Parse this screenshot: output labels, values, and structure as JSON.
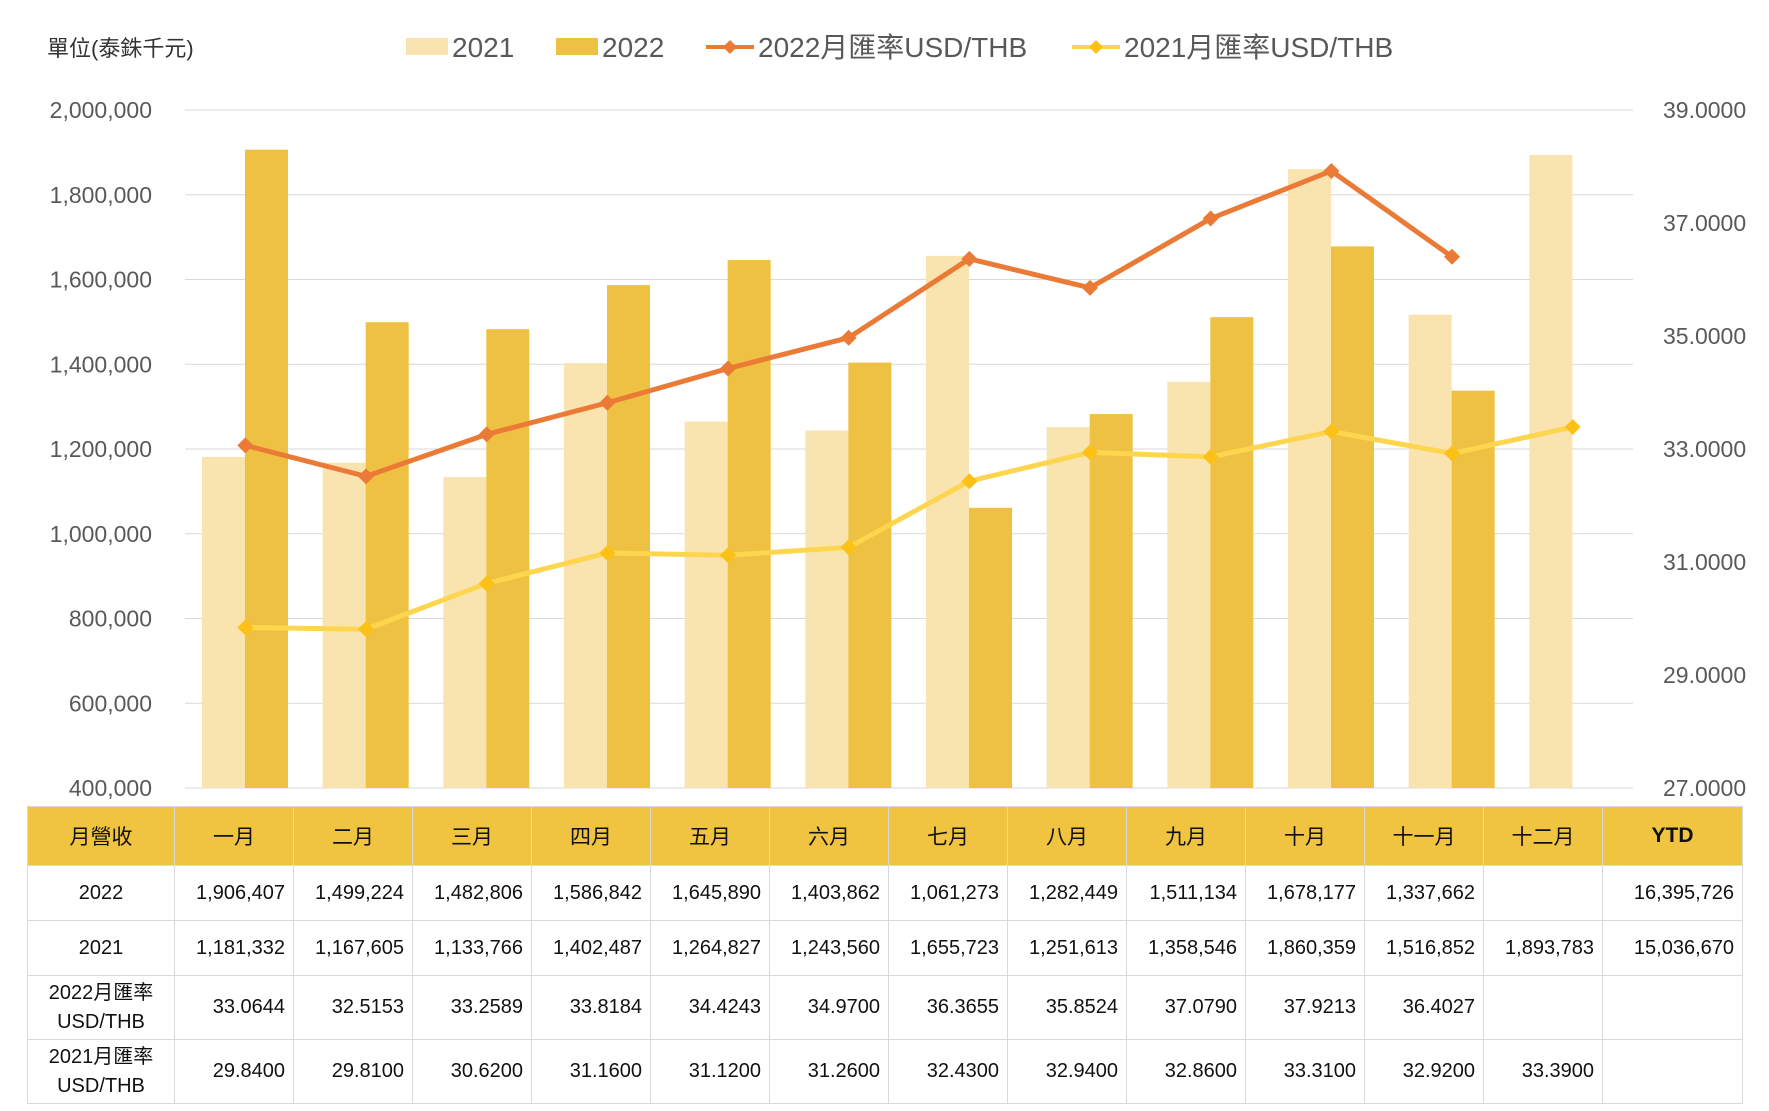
{
  "chart_data": {
    "type": "bar",
    "unit_label": "單位(泰銖千元)",
    "categories": [
      "一月",
      "二月",
      "三月",
      "四月",
      "五月",
      "六月",
      "七月",
      "八月",
      "九月",
      "十月",
      "十一月",
      "十二月"
    ],
    "y_left": {
      "ticks": [
        "2,000,000",
        "1,800,000",
        "1,600,000",
        "1,400,000",
        "1,200,000",
        "1,000,000",
        "800,000",
        "600,000",
        "400,000"
      ],
      "range": [
        400000,
        2000000
      ]
    },
    "y_right": {
      "ticks": [
        "39.0000",
        "37.0000",
        "35.0000",
        "33.0000",
        "31.0000",
        "29.0000",
        "27.0000"
      ],
      "range": [
        27,
        39
      ]
    },
    "grid": true,
    "legend_position": "top",
    "series": [
      {
        "name": "2021",
        "kind": "bar",
        "axis": "left",
        "color": "#f9e4b0",
        "values": [
          1181332,
          1167605,
          1133766,
          1402487,
          1264827,
          1243560,
          1655723,
          1251613,
          1358546,
          1860359,
          1516852,
          1893783
        ]
      },
      {
        "name": "2022",
        "kind": "bar",
        "axis": "left",
        "color": "#efc142",
        "values": [
          1906407,
          1499224,
          1482806,
          1586842,
          1645890,
          1403862,
          1061273,
          1282449,
          1511134,
          1678177,
          1337662,
          null
        ]
      },
      {
        "name": "2022月匯率USD/THB",
        "kind": "line",
        "axis": "right",
        "color": "#ea7a35",
        "values": [
          33.0644,
          32.5153,
          33.2589,
          33.8184,
          34.4243,
          34.97,
          36.3655,
          35.8524,
          37.079,
          37.9213,
          36.4027,
          null
        ]
      },
      {
        "name": "2021月匯率USD/THB",
        "kind": "line",
        "axis": "right",
        "color": "#fed54f",
        "marker_color": "#fdc015",
        "values": [
          29.84,
          29.81,
          30.62,
          31.16,
          31.12,
          31.26,
          32.43,
          32.94,
          32.86,
          33.31,
          32.92,
          33.39
        ]
      }
    ]
  },
  "table": {
    "corner": "月營收",
    "months": [
      "一月",
      "二月",
      "三月",
      "四月",
      "五月",
      "六月",
      "七月",
      "八月",
      "九月",
      "十月",
      "十一月",
      "十二月"
    ],
    "ytd_label": "YTD",
    "rows": [
      {
        "label": "2022",
        "cells": [
          "1,906,407",
          "1,499,224",
          "1,482,806",
          "1,586,842",
          "1,645,890",
          "1,403,862",
          "1,061,273",
          "1,282,449",
          "1,511,134",
          "1,678,177",
          "1,337,662",
          ""
        ],
        "ytd": "16,395,726"
      },
      {
        "label": "2021",
        "cells": [
          "1,181,332",
          "1,167,605",
          "1,133,766",
          "1,402,487",
          "1,264,827",
          "1,243,560",
          "1,655,723",
          "1,251,613",
          "1,358,546",
          "1,860,359",
          "1,516,852",
          "1,893,783"
        ],
        "ytd": "15,036,670"
      },
      {
        "label": "2022月匯率 USD/THB",
        "cells": [
          "33.0644",
          "32.5153",
          "33.2589",
          "33.8184",
          "34.4243",
          "34.9700",
          "36.3655",
          "35.8524",
          "37.0790",
          "37.9213",
          "36.4027",
          ""
        ],
        "ytd": ""
      },
      {
        "label": "2021月匯率 USD/THB",
        "cells": [
          "29.8400",
          "29.8100",
          "30.6200",
          "31.1600",
          "31.1200",
          "31.2600",
          "32.4300",
          "32.9400",
          "32.8600",
          "33.3100",
          "32.9200",
          "33.3900"
        ],
        "ytd": ""
      }
    ]
  }
}
